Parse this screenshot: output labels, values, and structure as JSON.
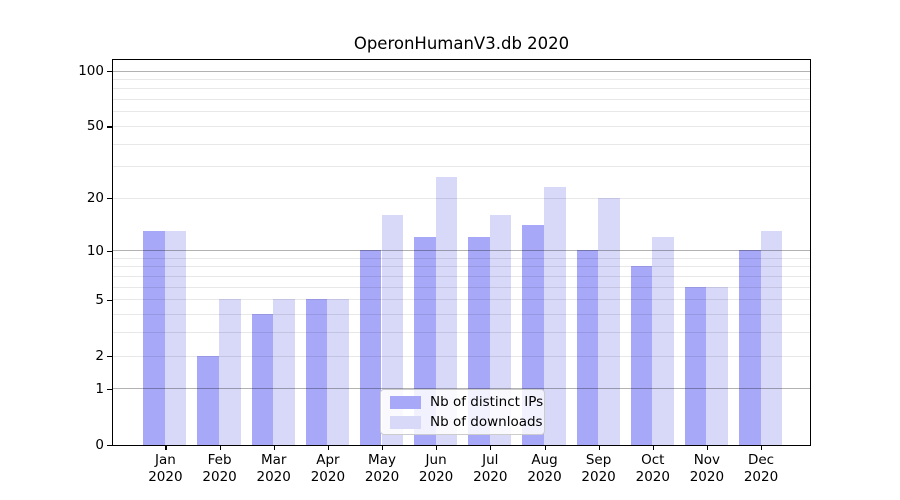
{
  "title": "OperonHumanV3.db 2020",
  "chart_data": {
    "type": "bar",
    "title": "OperonHumanV3.db 2020",
    "categories": [
      "Jan",
      "Feb",
      "Mar",
      "Apr",
      "May",
      "Jun",
      "Jul",
      "Aug",
      "Sep",
      "Oct",
      "Nov",
      "Dec"
    ],
    "category_year": "2020",
    "series": [
      {
        "name": "Nb of distinct IPs",
        "color": "#a8a8f9",
        "values": [
          13,
          2,
          4,
          5,
          10,
          12,
          12,
          14,
          10,
          8,
          6,
          10
        ]
      },
      {
        "name": "Nb of downloads",
        "color": "#d8d8f9",
        "values": [
          13,
          5,
          5,
          5,
          16,
          26,
          16,
          23,
          20,
          12,
          6,
          13
        ]
      }
    ],
    "xlabel": "",
    "ylabel": "",
    "yscale": "log(value+1)",
    "ylim": [
      0,
      115
    ],
    "ytick_labels": [
      "100",
      "50",
      "20",
      "10",
      "5",
      "2",
      "1",
      "0"
    ],
    "ytick_values": [
      100,
      50,
      20,
      10,
      5,
      2,
      1,
      0
    ],
    "major_gridline_values": [
      1,
      10,
      100
    ],
    "minor_gridline_values": [
      2,
      3,
      4,
      5,
      6,
      7,
      8,
      9,
      20,
      30,
      40,
      50,
      60,
      70,
      80,
      90
    ],
    "grid": "both, drawn over bars",
    "legend_position": "lower center"
  },
  "colors": {
    "background": "#ffffff",
    "axis": "#000000",
    "text": "#000000",
    "grid_major": "rgba(0,0,0,0.30)",
    "grid_minor": "rgba(0,0,0,0.09)",
    "legend_border": "#cccccc",
    "legend_background": "rgba(255,255,255,0.85)"
  }
}
